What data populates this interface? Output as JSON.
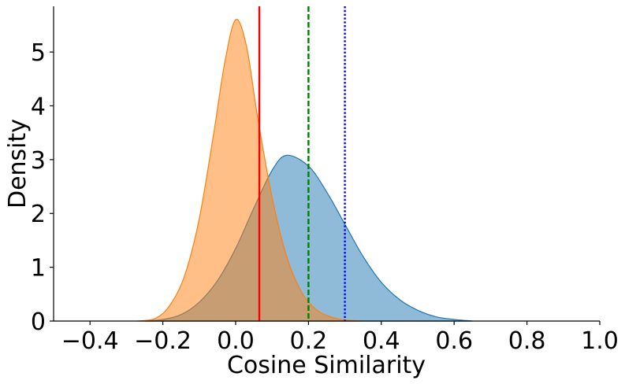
{
  "chart_data": {
    "type": "area",
    "title": "",
    "xlabel": "Cosine Similarity",
    "ylabel": "Density",
    "xlim": [
      -0.5,
      1.0
    ],
    "ylim": [
      0,
      5.85
    ],
    "x_ticks": [
      -0.4,
      -0.2,
      0.0,
      0.2,
      0.4,
      0.6,
      0.8,
      1.0
    ],
    "x_tick_labels": [
      "−0.4",
      "−0.2",
      "0.0",
      "0.2",
      "0.4",
      "0.6",
      "0.8",
      "1.0"
    ],
    "y_ticks": [
      0,
      1,
      2,
      3,
      4,
      5
    ],
    "y_tick_labels": [
      "0",
      "1",
      "2",
      "3",
      "4",
      "5"
    ],
    "grid": false,
    "legend": "none",
    "series": [
      {
        "color": "#1f77b4",
        "fill_opacity": 0.5,
        "x": [
          -0.25,
          -0.2,
          -0.15,
          -0.1,
          -0.05,
          0.0,
          0.05,
          0.1,
          0.14,
          0.2,
          0.25,
          0.3,
          0.35,
          0.4,
          0.45,
          0.5,
          0.55,
          0.6,
          0.65
        ],
        "y": [
          0.0,
          0.03,
          0.12,
          0.35,
          0.75,
          1.35,
          2.1,
          2.8,
          3.08,
          2.88,
          2.4,
          1.8,
          1.2,
          0.72,
          0.4,
          0.2,
          0.08,
          0.03,
          0.0
        ]
      },
      {
        "color": "#ff7f0e",
        "fill_opacity": 0.5,
        "x": [
          -0.27,
          -0.22,
          -0.18,
          -0.14,
          -0.1,
          -0.06,
          -0.03,
          0.0,
          0.03,
          0.06,
          0.1,
          0.14,
          0.18,
          0.22,
          0.26,
          0.3,
          0.35
        ],
        "y": [
          0.0,
          0.05,
          0.3,
          0.85,
          1.9,
          3.5,
          4.8,
          5.6,
          5.1,
          3.8,
          2.3,
          1.2,
          0.55,
          0.22,
          0.08,
          0.02,
          0.0
        ]
      }
    ],
    "vlines": [
      {
        "x": 0.065,
        "color": "#ff0000",
        "style": "solid"
      },
      {
        "x": 0.2,
        "color": "#008000",
        "style": "dashed"
      },
      {
        "x": 0.3,
        "color": "#0000ff",
        "style": "dotted"
      }
    ]
  }
}
